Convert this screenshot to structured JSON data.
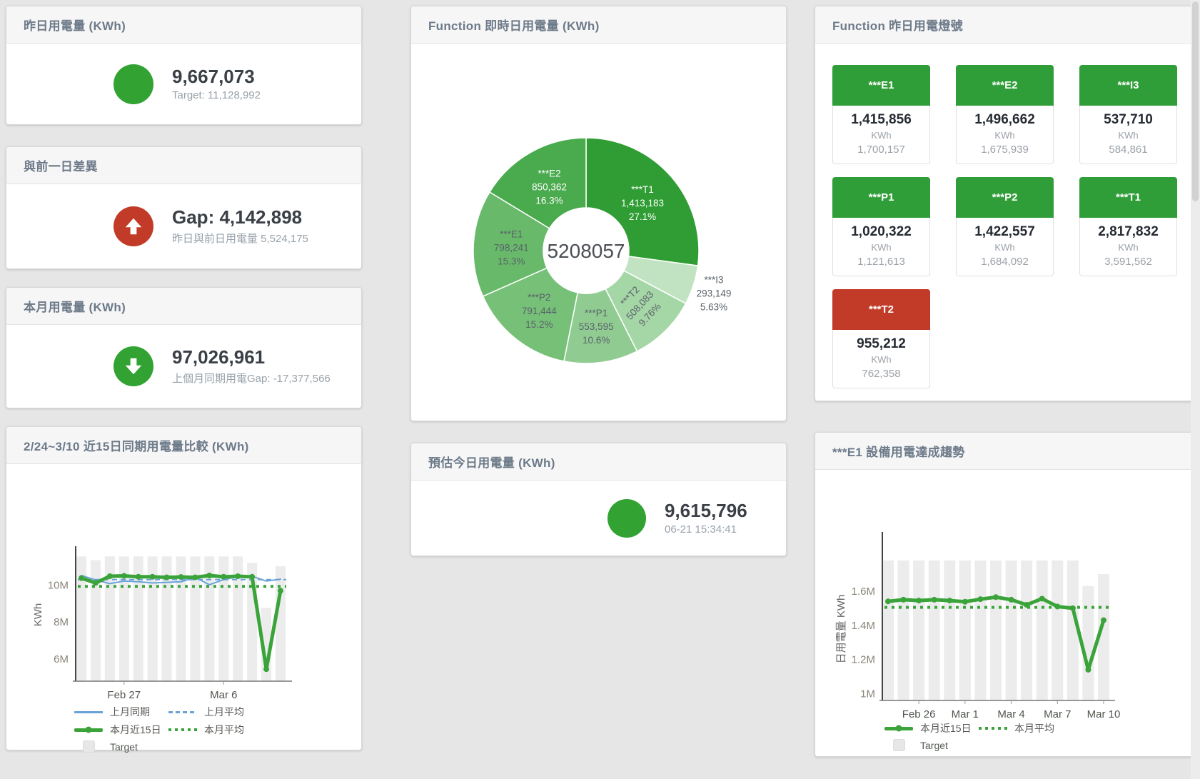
{
  "colors": {
    "green": "#32a232",
    "red": "#c23a28",
    "tile_green": "#2f9e38",
    "line_green": "#3aa33a",
    "line_blue": "#6aa2d8",
    "bar_gray": "#ececec"
  },
  "stat_cards": [
    {
      "id": "yesterday",
      "title": "昨日用電量 (KWh)",
      "icon": "circle",
      "icon_color": "#32a232",
      "value": "9,667,073",
      "subtext": "Target: 11,128,992"
    },
    {
      "id": "prev-day-gap",
      "title": "與前一日差異",
      "icon": "arrow-up",
      "icon_color": "#c23a28",
      "value": "Gap: 4,142,898",
      "subtext": "昨日與前日用電量 5,524,175"
    },
    {
      "id": "month",
      "title": "本月用電量 (KWh)",
      "icon": "arrow-down",
      "icon_color": "#32a232",
      "value": "97,026,961",
      "subtext": "上個月同期用電Gap: -17,377,566"
    },
    {
      "id": "estimate",
      "title": "預估今日用電量 (KWh)",
      "icon": "circle",
      "icon_color": "#32a232",
      "value": "9,615,796",
      "subtext": "06-21 15:34:41"
    }
  ],
  "lights": {
    "title": "Function 昨日用電燈號",
    "tiles": [
      {
        "label": "***E1",
        "value": "1,415,856",
        "unit": "KWh",
        "target": "1,700,157",
        "status": "green"
      },
      {
        "label": "***E2",
        "value": "1,496,662",
        "unit": "KWh",
        "target": "1,675,939",
        "status": "green"
      },
      {
        "label": "***I3",
        "value": "537,710",
        "unit": "KWh",
        "target": "584,861",
        "status": "green"
      },
      {
        "label": "***P1",
        "value": "1,020,322",
        "unit": "KWh",
        "target": "1,121,613",
        "status": "green"
      },
      {
        "label": "***P2",
        "value": "1,422,557",
        "unit": "KWh",
        "target": "1,684,092",
        "status": "green"
      },
      {
        "label": "***T1",
        "value": "2,817,832",
        "unit": "KWh",
        "target": "3,591,562",
        "status": "green"
      },
      {
        "label": "***T2",
        "value": "955,212",
        "unit": "KWh",
        "target": "762,358",
        "status": "red"
      }
    ]
  },
  "chart_data": [
    {
      "type": "pie",
      "title": "Function 即時日用電量 (KWh)",
      "center_total": "5208057",
      "legend_position": "none",
      "slices": [
        {
          "label": "***T1",
          "value": "1,413,183",
          "pct": "27.1%",
          "pct_num": 27.1,
          "color": "#2f9d33",
          "text": "#ffffff"
        },
        {
          "label": "***I3",
          "value": "293,149",
          "pct": "5.63%",
          "pct_num": 5.63,
          "color": "#c2e3c2",
          "text": "#5a626b",
          "outside": true
        },
        {
          "label": "***T2",
          "value": "508,083",
          "pct": "9.76%",
          "pct_num": 9.76,
          "color": "#a5d6a6",
          "text": "#5a626b",
          "tilt": -47
        },
        {
          "label": "***P1",
          "value": "553,595",
          "pct": "10.6%",
          "pct_num": 10.6,
          "color": "#90cc91",
          "text": "#5a626b"
        },
        {
          "label": "***P2",
          "value": "791,444",
          "pct": "15.2%",
          "pct_num": 15.2,
          "color": "#76c078",
          "text": "#5a626b"
        },
        {
          "label": "***E1",
          "value": "798,241",
          "pct": "15.3%",
          "pct_num": 15.3,
          "color": "#68ba6a",
          "text": "#5a626b"
        },
        {
          "label": "***E2",
          "value": "850,362",
          "pct": "16.3%",
          "pct_num": 16.3,
          "color": "#4aaa4e",
          "text": "#ffffff"
        }
      ]
    },
    {
      "type": "line+bar",
      "id": "compare",
      "title": "2/24~3/10 近15日同期用電量比較 (KWh)",
      "ylabel": "KWh",
      "unit_note": "values in millions of KWh",
      "ylim": [
        4.8,
        11.95
      ],
      "grid": false,
      "yticks": [
        {
          "value": 6,
          "label": "6M"
        },
        {
          "value": 8,
          "label": "8M"
        },
        {
          "value": 10,
          "label": "10M"
        }
      ],
      "categories": [
        "Feb 24",
        "Feb 25",
        "Feb 26",
        "Feb 27",
        "Feb 28",
        "Mar 1",
        "Mar 2",
        "Mar 3",
        "Mar 4",
        "Mar 5",
        "Mar 6",
        "Mar 7",
        "Mar 8",
        "Mar 9",
        "Mar 10"
      ],
      "xticks": [
        {
          "index": 3,
          "label": "Feb 27"
        },
        {
          "index": 10,
          "label": "Mar 6"
        }
      ],
      "series": [
        {
          "name": "Target",
          "type": "bar",
          "color": "#ececec",
          "values_m": [
            11.55,
            11.35,
            11.55,
            11.55,
            11.55,
            11.55,
            11.55,
            11.55,
            11.55,
            11.55,
            11.55,
            11.55,
            11.2,
            8.77,
            11.02
          ]
        },
        {
          "name": "上月平均",
          "type": "avg-dashed",
          "color": "#6aa2d8",
          "value_m": 10.3
        },
        {
          "name": "本月平均",
          "type": "avg-dotted",
          "color": "#3aa33a",
          "value_m": 9.93
        },
        {
          "name": "上月同期",
          "type": "line",
          "color": "#6aa2d8",
          "width": 2,
          "values_m": [
            10.52,
            10.28,
            10.08,
            10.22,
            10.18,
            10.12,
            10.15,
            10.18,
            10.42,
            10.02,
            10.3,
            10.45,
            10.48,
            10.22,
            10.32
          ]
        },
        {
          "name": "本月近15日",
          "type": "line",
          "color": "#3aa33a",
          "width": 5,
          "points": true,
          "values_m": [
            10.38,
            10.12,
            10.48,
            10.5,
            10.45,
            10.45,
            10.42,
            10.44,
            10.42,
            10.52,
            10.45,
            10.48,
            10.45,
            5.45,
            9.7
          ]
        }
      ],
      "legend_rows": [
        [
          "上月同期",
          "上月平均"
        ],
        [
          "本月近15日",
          "本月平均"
        ],
        [
          "Target"
        ]
      ]
    },
    {
      "type": "line+bar",
      "id": "e1-trend",
      "title": "***E1 設備用電達成趨勢",
      "ylabel": "日用電量 KWh",
      "unit_note": "values in millions of KWh",
      "ylim": [
        0.96,
        1.93
      ],
      "grid": false,
      "yticks": [
        {
          "value": 1,
          "label": "1M"
        },
        {
          "value": 1.2,
          "label": "1.2M"
        },
        {
          "value": 1.4,
          "label": "1.4M"
        },
        {
          "value": 1.6,
          "label": "1.6M"
        }
      ],
      "categories": [
        "Feb 24",
        "Feb 25",
        "Feb 26",
        "Feb 27",
        "Feb 28",
        "Mar 1",
        "Mar 2",
        "Mar 3",
        "Mar 4",
        "Mar 5",
        "Mar 6",
        "Mar 7",
        "Mar 8",
        "Mar 9",
        "Mar 10"
      ],
      "xticks": [
        {
          "index": 2,
          "label": "Feb 26"
        },
        {
          "index": 5,
          "label": "Mar 1"
        },
        {
          "index": 8,
          "label": "Mar 4"
        },
        {
          "index": 11,
          "label": "Mar 7"
        },
        {
          "index": 14,
          "label": "Mar 10"
        }
      ],
      "series": [
        {
          "name": "Target",
          "type": "bar",
          "color": "#ececec",
          "values_m": [
            1.78,
            1.78,
            1.78,
            1.78,
            1.78,
            1.78,
            1.78,
            1.78,
            1.78,
            1.78,
            1.78,
            1.78,
            1.78,
            1.63,
            1.7
          ]
        },
        {
          "name": "本月平均",
          "type": "avg-dotted",
          "color": "#3aa33a",
          "value_m": 1.505
        },
        {
          "name": "本月近15日",
          "type": "line",
          "color": "#3aa33a",
          "width": 5,
          "points": true,
          "values_m": [
            1.54,
            1.55,
            1.545,
            1.55,
            1.545,
            1.538,
            1.553,
            1.565,
            1.55,
            1.52,
            1.556,
            1.51,
            1.5,
            1.14,
            1.43
          ]
        }
      ],
      "legend_rows": [
        [
          "本月近15日",
          "本月平均"
        ],
        [
          "Target"
        ]
      ]
    }
  ]
}
